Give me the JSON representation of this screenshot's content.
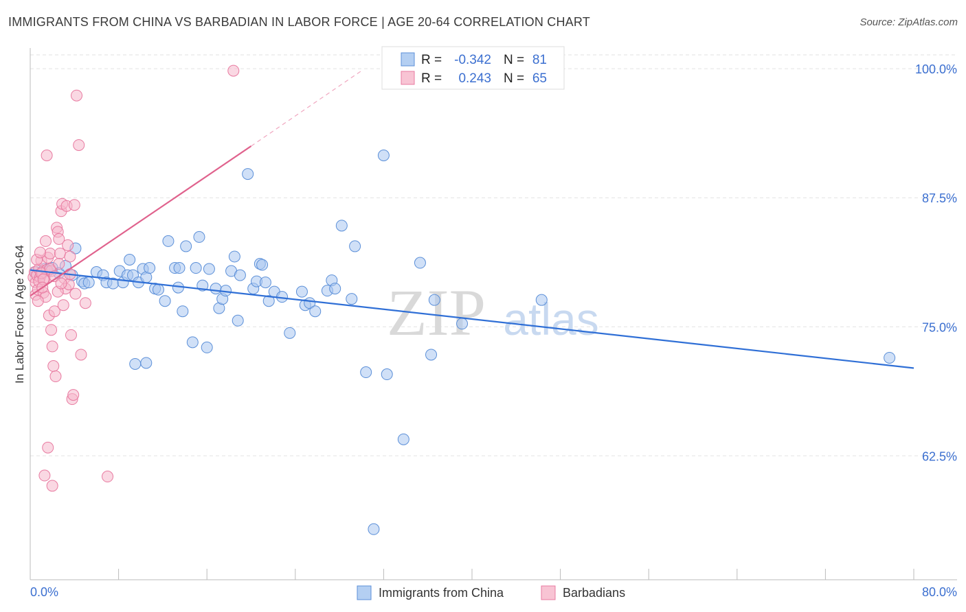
{
  "title": "IMMIGRANTS FROM CHINA VS BARBADIAN IN LABOR FORCE | AGE 20-64 CORRELATION CHART",
  "source": "Source: ZipAtlas.com",
  "watermark": {
    "zip": "ZIP",
    "atlas": "atlas"
  },
  "colors": {
    "blue": "#5b8fd8",
    "blue_fill": "#a9c6f0",
    "pink": "#e87aa0",
    "pink_fill": "#f5b8cc",
    "axis_label": "#3b6fd0",
    "grid": "#e2e2e2"
  },
  "legend_top": [
    {
      "r_label": "R = ",
      "r_value": "-0.342",
      "n_label": "N = ",
      "n_value": "81"
    },
    {
      "r_label": "R = ",
      "r_value": "0.243",
      "n_label": "N = ",
      "n_value": "65"
    }
  ],
  "chart_data": {
    "type": "scatter",
    "xlabel": "",
    "ylabel": "In Labor Force | Age 20-64",
    "xlim": [
      0,
      80
    ],
    "ylim": [
      50.5,
      102
    ],
    "x_tick_labels": [
      "0.0%",
      "80.0%"
    ],
    "y_ticks": [
      100,
      87.5,
      75,
      62.5
    ],
    "y_tick_labels": [
      "100.0%",
      "87.5%",
      "75.0%",
      "62.5%"
    ],
    "grid": true,
    "legend_placement": "bottom-center",
    "series": [
      {
        "name": "Immigrants from China",
        "trend": {
          "x0": 0,
          "y0": 80.5,
          "x1": 80,
          "y1": 71.0
        },
        "points": [
          [
            0.5,
            80.3
          ],
          [
            1.0,
            80.1
          ],
          [
            1.3,
            80.6
          ],
          [
            1.6,
            80.4
          ],
          [
            2.0,
            80.7
          ],
          [
            2.6,
            80.2
          ],
          [
            3.2,
            80.9
          ],
          [
            3.8,
            80.0
          ],
          [
            4.1,
            82.6
          ],
          [
            4.7,
            79.4
          ],
          [
            4.9,
            79.2
          ],
          [
            5.3,
            79.3
          ],
          [
            6.0,
            80.3
          ],
          [
            6.6,
            80.0
          ],
          [
            6.9,
            79.3
          ],
          [
            7.5,
            79.2
          ],
          [
            8.1,
            80.4
          ],
          [
            8.4,
            79.3
          ],
          [
            8.8,
            80.0
          ],
          [
            9.0,
            81.5
          ],
          [
            9.3,
            80.0
          ],
          [
            9.8,
            79.3
          ],
          [
            10.2,
            80.6
          ],
          [
            10.5,
            79.8
          ],
          [
            10.8,
            80.7
          ],
          [
            11.3,
            78.7
          ],
          [
            11.6,
            78.6
          ],
          [
            12.2,
            77.5
          ],
          [
            12.5,
            83.3
          ],
          [
            13.1,
            80.7
          ],
          [
            13.4,
            78.8
          ],
          [
            13.8,
            76.5
          ],
          [
            14.1,
            82.8
          ],
          [
            14.7,
            73.5
          ],
          [
            15.0,
            80.7
          ],
          [
            15.3,
            83.7
          ],
          [
            15.6,
            79.0
          ],
          [
            16.2,
            80.6
          ],
          [
            16.8,
            78.7
          ],
          [
            17.1,
            76.8
          ],
          [
            17.4,
            77.7
          ],
          [
            17.7,
            78.5
          ],
          [
            18.2,
            80.4
          ],
          [
            18.5,
            81.8
          ],
          [
            18.8,
            75.6
          ],
          [
            19.7,
            89.8
          ],
          [
            20.2,
            78.7
          ],
          [
            20.5,
            79.4
          ],
          [
            20.8,
            81.1
          ],
          [
            21.3,
            79.3
          ],
          [
            21.6,
            77.5
          ],
          [
            22.1,
            78.4
          ],
          [
            23.5,
            74.4
          ],
          [
            24.6,
            78.4
          ],
          [
            24.9,
            77.1
          ],
          [
            25.3,
            77.3
          ],
          [
            25.8,
            76.5
          ],
          [
            26.9,
            78.5
          ],
          [
            27.3,
            79.5
          ],
          [
            27.6,
            78.7
          ],
          [
            28.2,
            84.8
          ],
          [
            29.1,
            77.7
          ],
          [
            29.4,
            82.8
          ],
          [
            30.4,
            70.6
          ],
          [
            31.1,
            55.4
          ],
          [
            32.0,
            91.6
          ],
          [
            32.3,
            70.4
          ],
          [
            33.8,
            64.1
          ],
          [
            35.3,
            81.2
          ],
          [
            36.3,
            72.3
          ],
          [
            36.6,
            77.6
          ],
          [
            39.1,
            75.3
          ],
          [
            46.3,
            77.6
          ],
          [
            77.8,
            72.0
          ],
          [
            10.5,
            71.5
          ],
          [
            9.5,
            71.4
          ],
          [
            13.5,
            80.7
          ],
          [
            19.0,
            80.0
          ],
          [
            21.0,
            81.0
          ],
          [
            16.0,
            73.0
          ],
          [
            22.8,
            77.9
          ]
        ]
      },
      {
        "name": "Barbadians",
        "trend": {
          "x0": 0,
          "y0": 78.0,
          "x1": 20,
          "y1": 92.5
        },
        "trend_ext": {
          "x0": 20,
          "y0": 92.5,
          "x1": 30,
          "y1": 99.8
        },
        "points": [
          [
            0.3,
            79.8
          ],
          [
            0.4,
            80.3
          ],
          [
            0.5,
            78.1
          ],
          [
            0.5,
            79.3
          ],
          [
            0.6,
            80.0
          ],
          [
            0.7,
            78.6
          ],
          [
            0.8,
            80.6
          ],
          [
            0.9,
            79.8
          ],
          [
            1.0,
            81.4
          ],
          [
            1.1,
            80.2
          ],
          [
            1.2,
            78.3
          ],
          [
            1.3,
            79.7
          ],
          [
            1.4,
            77.9
          ],
          [
            1.5,
            80.5
          ],
          [
            1.6,
            81.7
          ],
          [
            1.7,
            76.1
          ],
          [
            1.8,
            82.1
          ],
          [
            1.9,
            74.7
          ],
          [
            2.0,
            73.1
          ],
          [
            2.1,
            71.2
          ],
          [
            2.2,
            76.5
          ],
          [
            2.3,
            70.2
          ],
          [
            2.4,
            84.6
          ],
          [
            2.5,
            84.2
          ],
          [
            2.6,
            83.5
          ],
          [
            2.7,
            82.1
          ],
          [
            2.8,
            86.2
          ],
          [
            2.9,
            86.9
          ],
          [
            3.0,
            77.1
          ],
          [
            3.1,
            79.7
          ],
          [
            3.2,
            78.7
          ],
          [
            3.3,
            86.7
          ],
          [
            3.4,
            82.9
          ],
          [
            3.5,
            79.1
          ],
          [
            3.6,
            81.8
          ],
          [
            3.7,
            74.2
          ],
          [
            3.8,
            68.0
          ],
          [
            3.9,
            68.4
          ],
          [
            4.0,
            86.8
          ],
          [
            4.1,
            78.2
          ],
          [
            4.2,
            97.4
          ],
          [
            4.4,
            92.6
          ],
          [
            4.6,
            72.3
          ],
          [
            5.0,
            77.3
          ],
          [
            1.5,
            91.6
          ],
          [
            1.6,
            63.3
          ],
          [
            1.3,
            60.6
          ],
          [
            2.0,
            59.6
          ],
          [
            7.0,
            60.5
          ],
          [
            18.4,
            99.8
          ],
          [
            0.8,
            79.4
          ],
          [
            1.0,
            80.2
          ],
          [
            1.9,
            80.4
          ],
          [
            1.2,
            79.6
          ],
          [
            2.5,
            78.4
          ],
          [
            3.6,
            80.1
          ],
          [
            0.6,
            81.5
          ],
          [
            0.9,
            82.2
          ],
          [
            1.8,
            80.6
          ],
          [
            2.2,
            79.9
          ],
          [
            2.6,
            81.1
          ],
          [
            1.4,
            83.3
          ],
          [
            0.7,
            77.5
          ],
          [
            1.1,
            78.8
          ],
          [
            2.8,
            79.2
          ]
        ]
      }
    ]
  }
}
